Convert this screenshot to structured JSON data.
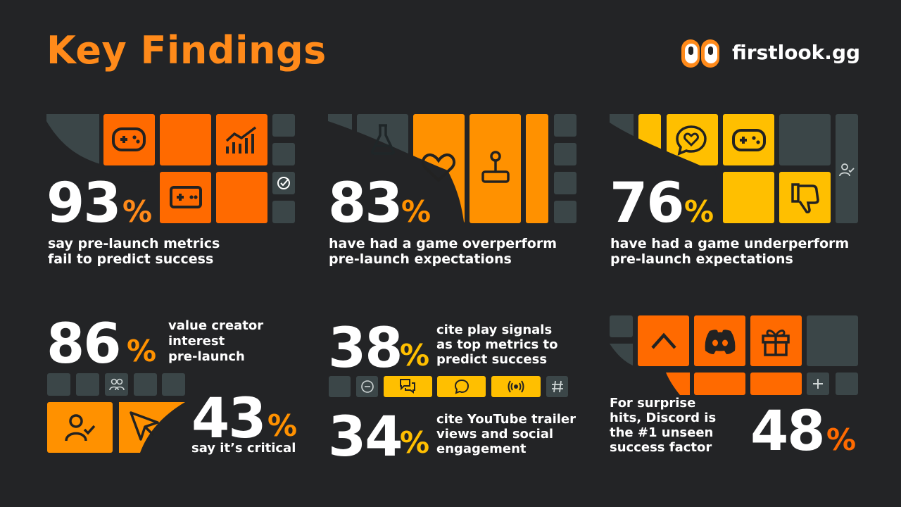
{
  "header": {
    "title": "Key Findings",
    "brand": "firstlook.gg"
  },
  "stats": [
    {
      "value": "93",
      "unit": "%",
      "line1": "say pre-launch metrics",
      "line2": "fail to predict success"
    },
    {
      "value": "83",
      "unit": "%",
      "line1": "have had a game overperform",
      "line2": "pre-launch expectations"
    },
    {
      "value": "76",
      "unit": "%",
      "line1": "have had a game underperform",
      "line2": "pre-launch expectations"
    },
    {
      "value": "86",
      "unit": "%",
      "line1": "value creator",
      "line2": "interest",
      "line3": "pre-launch"
    },
    {
      "value": "43",
      "unit": "%",
      "line1": "say it’s critical"
    },
    {
      "value": "38",
      "unit": "%",
      "line1": "cite play signals",
      "line2": "as top metrics to",
      "line3": "predict success"
    },
    {
      "value": "34",
      "unit": "%",
      "line1": "cite YouTube trailer",
      "line2": "views and social",
      "line3": "engagement"
    },
    {
      "value": "48",
      "unit": "%",
      "line1": "For surprise",
      "line2": "hits, Discord is",
      "line3": "the #1 unseen",
      "line4": "success factor"
    }
  ],
  "colors": {
    "background": "#232426",
    "accent_orange": "#ff6a00",
    "accent_amber": "#ff9100",
    "accent_yellow": "#ffbf00",
    "tile_gray": "#3b4648"
  },
  "icons": [
    "gamepad-icon",
    "chart-icon",
    "check-icon",
    "flask-icon",
    "heart-icon",
    "joystick-icon",
    "chat-heart-icon",
    "thumbs-down-icon",
    "user-check-icon",
    "users-icon",
    "send-icon",
    "chat-icon",
    "broadcast-icon",
    "hash-icon",
    "chevron-up-icon",
    "discord-icon",
    "gift-icon",
    "plus-icon"
  ]
}
